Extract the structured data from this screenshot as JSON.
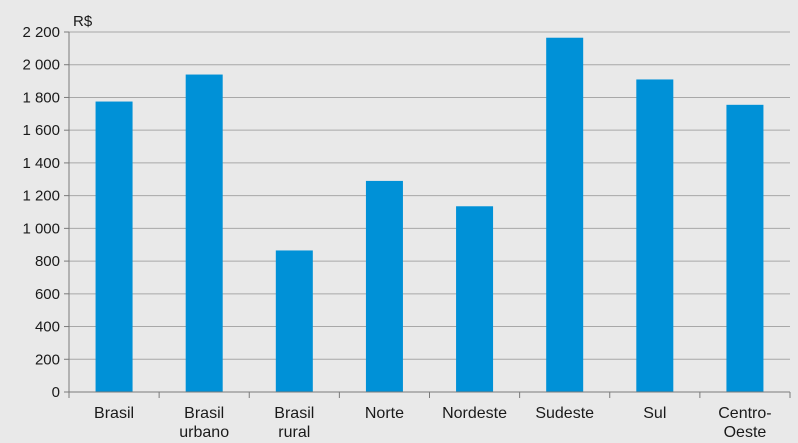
{
  "chart_data": {
    "type": "bar",
    "title": "",
    "subtitle": "",
    "ylabel": "R$",
    "xlabel": "",
    "ylim": [
      0,
      2200
    ],
    "yticks": [
      0,
      200,
      400,
      600,
      800,
      1000,
      1200,
      1400,
      1600,
      1800,
      2000,
      2200
    ],
    "ytick_labels": [
      "0",
      "200",
      "400",
      "600",
      "800",
      "1 000",
      "1 200",
      "1 400",
      "1 600",
      "1 800",
      "2 000",
      "2 200"
    ],
    "categories": [
      "Brasil",
      "Brasil urbano",
      "Brasil rural",
      "Norte",
      "Nordeste",
      "Sudeste",
      "Sul",
      "Centro-Oeste"
    ],
    "category_label_lines": [
      [
        "Brasil"
      ],
      [
        "Brasil",
        "urbano"
      ],
      [
        "Brasil",
        "rural"
      ],
      [
        "Norte"
      ],
      [
        "Nordeste"
      ],
      [
        "Sudeste"
      ],
      [
        "Sul"
      ],
      [
        "Centro-",
        "Oeste"
      ]
    ],
    "values": [
      1775,
      1940,
      865,
      1290,
      1135,
      2165,
      1910,
      1755
    ],
    "bar_color": "#0091d7",
    "grid": true,
    "legend": "none"
  }
}
